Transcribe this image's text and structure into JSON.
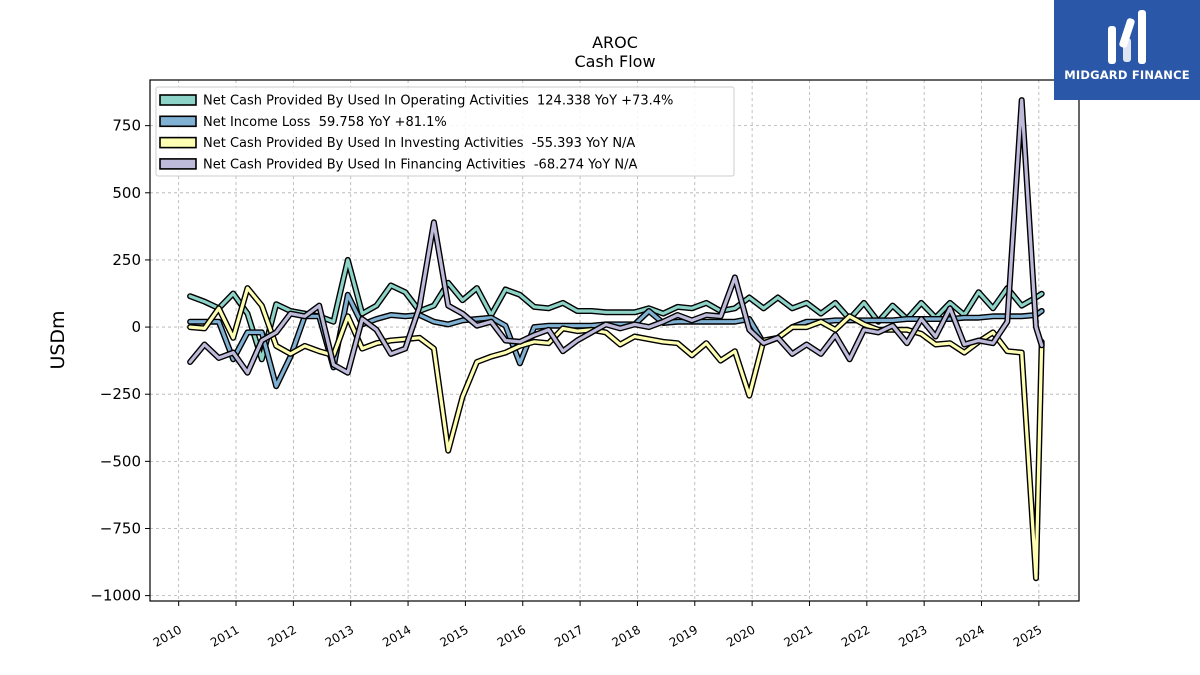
{
  "brand": {
    "name": "MIDGARD FINANCE",
    "bg_color": "#2b57a8"
  },
  "chart_data": {
    "type": "line",
    "title": "AROC",
    "subtitle": "Cash Flow",
    "xlabel": "",
    "ylabel": "USDm",
    "xlim": [
      2009.5,
      2025.7
    ],
    "ylim": [
      -1020,
      920
    ],
    "yticks": [
      750,
      500,
      250,
      0,
      -250,
      -500,
      -750,
      -1000
    ],
    "ytick_labels": [
      "750",
      "500",
      "250",
      "0",
      "−250",
      "−500",
      "−750",
      "−1000"
    ],
    "xticks": [
      2010,
      2011,
      2012,
      2013,
      2014,
      2015,
      2016,
      2017,
      2018,
      2019,
      2020,
      2021,
      2022,
      2023,
      2024,
      2025
    ],
    "xtick_labels": [
      "2010",
      "2011",
      "2012",
      "2013",
      "2014",
      "2015",
      "2016",
      "2017",
      "2018",
      "2019",
      "2020",
      "2021",
      "2022",
      "2023",
      "2024",
      "2025"
    ],
    "grid": true,
    "legend_position": "top-left",
    "series": [
      {
        "name": "Net Cash Provided By Used In Operating Activities",
        "legend": "Net Cash Provided By Used In Operating Activities  124.338 YoY +73.4%",
        "color": "#8dd3c7",
        "x": [
          2010.2,
          2010.45,
          2010.7,
          2010.95,
          2011.2,
          2011.45,
          2011.7,
          2011.95,
          2012.2,
          2012.45,
          2012.7,
          2012.95,
          2013.2,
          2013.45,
          2013.7,
          2013.95,
          2014.2,
          2014.45,
          2014.7,
          2014.95,
          2015.2,
          2015.45,
          2015.7,
          2015.95,
          2016.2,
          2016.45,
          2016.7,
          2016.95,
          2017.2,
          2017.45,
          2017.7,
          2017.95,
          2018.2,
          2018.45,
          2018.7,
          2018.95,
          2019.2,
          2019.45,
          2019.7,
          2019.95,
          2020.2,
          2020.45,
          2020.7,
          2020.95,
          2021.2,
          2021.45,
          2021.7,
          2021.95,
          2022.2,
          2022.45,
          2022.7,
          2022.95,
          2023.2,
          2023.45,
          2023.7,
          2023.95,
          2024.2,
          2024.45,
          2024.7,
          2024.95,
          2025.05
        ],
        "y": [
          115,
          95,
          70,
          125,
          50,
          -120,
          85,
          60,
          50,
          40,
          20,
          250,
          50,
          80,
          155,
          130,
          60,
          80,
          165,
          100,
          145,
          45,
          140,
          120,
          75,
          70,
          90,
          60,
          60,
          55,
          55,
          55,
          70,
          50,
          75,
          70,
          90,
          60,
          70,
          110,
          70,
          110,
          70,
          90,
          50,
          90,
          30,
          90,
          20,
          80,
          30,
          90,
          35,
          90,
          45,
          130,
          70,
          145,
          80,
          110,
          124
        ]
      },
      {
        "name": "Net Income Loss",
        "legend": "Net Income Loss  59.758 YoY +81.1%",
        "color": "#80b1d3",
        "x": [
          2010.2,
          2010.45,
          2010.7,
          2010.95,
          2011.2,
          2011.45,
          2011.7,
          2011.95,
          2012.2,
          2012.45,
          2012.7,
          2012.95,
          2013.2,
          2013.45,
          2013.7,
          2013.95,
          2014.2,
          2014.45,
          2014.7,
          2014.95,
          2015.2,
          2015.45,
          2015.7,
          2015.95,
          2016.2,
          2016.45,
          2016.7,
          2016.95,
          2017.2,
          2017.45,
          2017.7,
          2017.95,
          2018.2,
          2018.45,
          2018.7,
          2018.95,
          2019.2,
          2019.45,
          2019.7,
          2019.95,
          2020.2,
          2020.45,
          2020.7,
          2020.95,
          2021.2,
          2021.45,
          2021.7,
          2021.95,
          2022.2,
          2022.45,
          2022.7,
          2022.95,
          2023.2,
          2023.45,
          2023.7,
          2023.95,
          2024.2,
          2024.45,
          2024.7,
          2024.95,
          2025.05
        ],
        "y": [
          20,
          20,
          20,
          -120,
          -20,
          -20,
          -220,
          -110,
          40,
          40,
          -150,
          120,
          10,
          30,
          45,
          40,
          45,
          20,
          10,
          25,
          30,
          35,
          5,
          -135,
          0,
          5,
          5,
          5,
          5,
          10,
          10,
          10,
          60,
          15,
          20,
          20,
          20,
          20,
          20,
          30,
          -60,
          -40,
          0,
          20,
          20,
          25,
          25,
          25,
          25,
          25,
          30,
          30,
          30,
          30,
          35,
          35,
          40,
          40,
          40,
          45,
          60
        ]
      },
      {
        "name": "Net Cash Provided By Used In Investing Activities",
        "legend": "Net Cash Provided By Used In Investing Activities  -55.393 YoY N/A",
        "color": "#ffffb3",
        "x": [
          2010.2,
          2010.45,
          2010.7,
          2010.95,
          2011.2,
          2011.45,
          2011.7,
          2011.95,
          2012.2,
          2012.45,
          2012.7,
          2012.95,
          2013.2,
          2013.45,
          2013.7,
          2013.95,
          2014.2,
          2014.45,
          2014.7,
          2014.95,
          2015.2,
          2015.45,
          2015.7,
          2015.95,
          2016.2,
          2016.45,
          2016.7,
          2016.95,
          2017.2,
          2017.45,
          2017.7,
          2017.95,
          2018.2,
          2018.45,
          2018.7,
          2018.95,
          2019.2,
          2019.45,
          2019.7,
          2019.95,
          2020.2,
          2020.45,
          2020.7,
          2020.95,
          2021.2,
          2021.45,
          2021.7,
          2021.95,
          2022.2,
          2022.45,
          2022.7,
          2022.95,
          2023.2,
          2023.45,
          2023.7,
          2023.95,
          2024.2,
          2024.45,
          2024.7,
          2024.95,
          2025.05
        ],
        "y": [
          0,
          -5,
          70,
          -40,
          145,
          80,
          -70,
          -100,
          -70,
          -90,
          -105,
          40,
          -80,
          -60,
          -50,
          -45,
          -40,
          -80,
          -460,
          -260,
          -130,
          -110,
          -95,
          -70,
          -55,
          -60,
          -5,
          -15,
          -10,
          -20,
          -65,
          -35,
          -45,
          -55,
          -60,
          -105,
          -60,
          -125,
          -90,
          -255,
          -50,
          -40,
          0,
          0,
          20,
          -10,
          40,
          10,
          -10,
          -10,
          -10,
          -25,
          -65,
          -60,
          -95,
          -55,
          -20,
          -90,
          -95,
          -935,
          -55
        ]
      },
      {
        "name": "Net Cash Provided By Used In Financing Activities",
        "legend": "Net Cash Provided By Used In Financing Activities  -68.274 YoY N/A",
        "color": "#bebada",
        "x": [
          2010.2,
          2010.45,
          2010.7,
          2010.95,
          2011.2,
          2011.45,
          2011.7,
          2011.95,
          2012.2,
          2012.45,
          2012.7,
          2012.95,
          2013.2,
          2013.45,
          2013.7,
          2013.95,
          2014.2,
          2014.45,
          2014.7,
          2014.95,
          2015.2,
          2015.45,
          2015.7,
          2015.95,
          2016.2,
          2016.45,
          2016.7,
          2016.95,
          2017.2,
          2017.45,
          2017.7,
          2017.95,
          2018.2,
          2018.45,
          2018.7,
          2018.95,
          2019.2,
          2019.45,
          2019.7,
          2019.95,
          2020.2,
          2020.45,
          2020.7,
          2020.95,
          2021.2,
          2021.45,
          2021.7,
          2021.95,
          2022.2,
          2022.45,
          2022.7,
          2022.95,
          2023.2,
          2023.45,
          2023.7,
          2023.95,
          2024.2,
          2024.45,
          2024.7,
          2024.95,
          2025.05
        ],
        "y": [
          -130,
          -65,
          -115,
          -95,
          -170,
          -50,
          -20,
          50,
          40,
          80,
          -140,
          -170,
          30,
          -10,
          -100,
          -80,
          75,
          390,
          80,
          50,
          5,
          20,
          -50,
          -55,
          -30,
          -10,
          -90,
          -50,
          -20,
          10,
          -5,
          10,
          0,
          20,
          45,
          25,
          45,
          40,
          185,
          -10,
          -60,
          -40,
          -100,
          -65,
          -100,
          -30,
          -120,
          -10,
          -20,
          5,
          -60,
          30,
          -35,
          70,
          -65,
          -50,
          -60,
          20,
          845,
          0,
          -68
        ]
      }
    ]
  }
}
